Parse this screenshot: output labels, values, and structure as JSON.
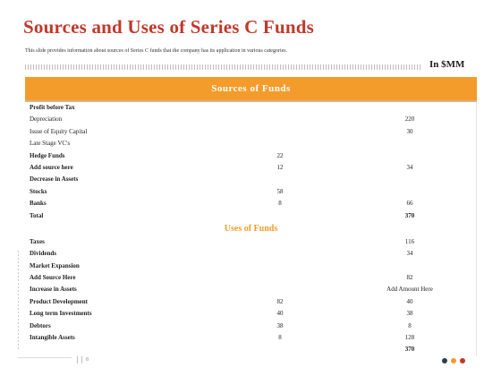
{
  "header": {
    "title": "Sources and Uses of Series C Funds",
    "subtitle": "This slide provides information about sources of Series C funds that the company has its application in various categories.",
    "unit": "In $MM"
  },
  "table": {
    "sources_title": "Sources of Funds",
    "sources_rows": [
      {
        "label": "Profit before Tax",
        "v1": "",
        "v2": "",
        "bold": true
      },
      {
        "label": "Depreciation",
        "v1": "",
        "v2": "220",
        "bold": false
      },
      {
        "label": "Issue of Equity Capital",
        "v1": "",
        "v2": "30",
        "bold": false
      },
      {
        "label": "Late Stage VC's",
        "v1": "",
        "v2": "",
        "bold": false
      },
      {
        "label": "Hedge Funds",
        "v1": "22",
        "v2": "",
        "bold": true
      },
      {
        "label": "Add source here",
        "v1": "12",
        "v2": "34",
        "bold": true
      },
      {
        "label": "Decrease in Assets",
        "v1": "",
        "v2": "",
        "bold": true
      },
      {
        "label": "Stocks",
        "v1": "58",
        "v2": "",
        "bold": true
      },
      {
        "label": "Banks",
        "v1": "8",
        "v2": "66",
        "bold": true
      },
      {
        "label": "Total",
        "v1": "",
        "v2": "370",
        "bold": true
      }
    ],
    "uses_title": "Uses of Funds",
    "uses_rows": [
      {
        "label": "Taxes",
        "v1": "",
        "v2": "116",
        "bold": true
      },
      {
        "label": "Dividends",
        "v1": "",
        "v2": "34",
        "bold": true
      },
      {
        "label": "Market Expansion",
        "v1": "",
        "v2": "",
        "bold": true
      },
      {
        "label": "Add Source Here",
        "v1": "",
        "v2": "82",
        "bold": true
      },
      {
        "label": "Increase in Assets",
        "v1": "",
        "v2": "Add Amount Here",
        "bold": true
      },
      {
        "label": "Product Development",
        "v1": "82",
        "v2": "40",
        "bold": true
      },
      {
        "label": "Long term Investments",
        "v1": "40",
        "v2": "38",
        "bold": true
      },
      {
        "label": "Debtors",
        "v1": "38",
        "v2": "8",
        "bold": true
      },
      {
        "label": "Intangible Assets",
        "v1": "8",
        "v2": "128",
        "bold": true
      },
      {
        "label": "",
        "v1": "",
        "v2": "370",
        "bold": true
      }
    ]
  },
  "footer": {
    "page_number": "8",
    "dot_colors": [
      "#2c3e50",
      "#f39c2b",
      "#c0392b"
    ]
  },
  "colors": {
    "title": "#c0392b",
    "accent": "#f39c2b"
  }
}
